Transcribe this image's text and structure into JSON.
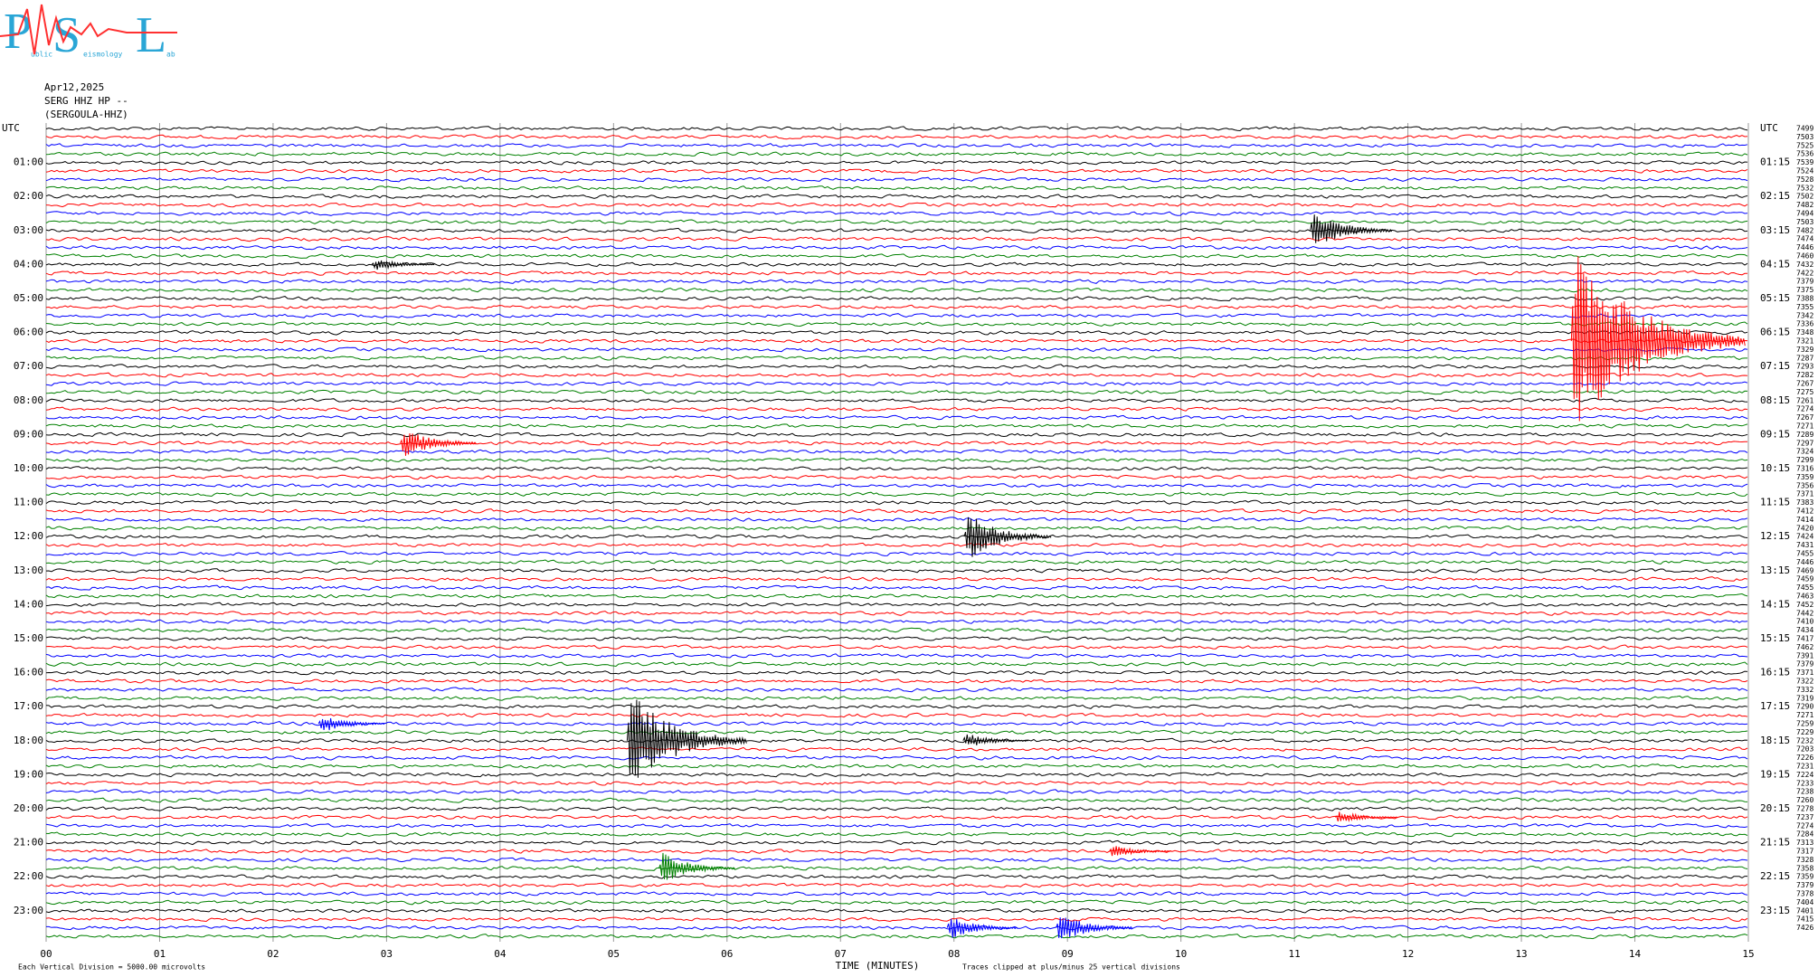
{
  "logo": {
    "letters": [
      "P",
      "S",
      "L"
    ],
    "words": [
      "ublic",
      "eismology",
      "ab"
    ]
  },
  "chart_data": {
    "type": "helicorder",
    "header": [
      "Apr12,2025",
      "SERG HHZ HP --",
      "(SERGOULA-HHZ)"
    ],
    "left_labels": [
      "UTC",
      "01:00",
      "02:00",
      "03:00",
      "04:00",
      "05:00",
      "06:00",
      "07:00",
      "08:00",
      "09:00",
      "10:00",
      "11:00",
      "12:00",
      "13:00",
      "14:00",
      "15:00",
      "16:00",
      "17:00",
      "18:00",
      "19:00",
      "20:00",
      "21:00",
      "22:00",
      "23:00"
    ],
    "right_labels": [
      "UTC",
      "01:15",
      "02:15",
      "03:15",
      "04:15",
      "05:15",
      "06:15",
      "07:15",
      "08:15",
      "09:15",
      "10:15",
      "11:15",
      "12:15",
      "13:15",
      "14:15",
      "15:15",
      "16:15",
      "17:15",
      "18:15",
      "19:15",
      "20:15",
      "21:15",
      "22:15",
      "23:15"
    ],
    "trace_labels": [
      "7499",
      "7503",
      "7525",
      "7536",
      "7539",
      "7524",
      "7528",
      "7532",
      "7502",
      "7482",
      "7494",
      "7503",
      "7482",
      "7474",
      "7446",
      "7460",
      "7432",
      "7422",
      "7379",
      "7375",
      "7388",
      "7355",
      "7342",
      "7336",
      "7348",
      "7321",
      "7329",
      "7287",
      "7293",
      "7282",
      "7267",
      "7275",
      "7261",
      "7274",
      "7267",
      "7271",
      "7289",
      "7297",
      "7324",
      "7299",
      "7316",
      "7359",
      "7356",
      "7371",
      "7383",
      "7412",
      "7414",
      "7420",
      "7424",
      "7431",
      "7455",
      "7446",
      "7469",
      "7459",
      "7455",
      "7463",
      "7452",
      "7442",
      "7410",
      "7434",
      "7417",
      "7462",
      "7391",
      "7379",
      "7371",
      "7322",
      "7332",
      "7319",
      "7290",
      "7271",
      "7259",
      "7229",
      "7232",
      "7203",
      "7226",
      "7231",
      "7224",
      "7233",
      "7238",
      "7260",
      "7278",
      "7237",
      "7274",
      "7284",
      "7313",
      "7317",
      "7328",
      "7358",
      "7359",
      "7379",
      "7378",
      "7404",
      "7401",
      "7415",
      "7426"
    ],
    "colors": [
      "#000000",
      "#ff0000",
      "#0000ff",
      "#008000"
    ],
    "xlim": [
      0,
      15
    ],
    "xticks": [
      {
        "value": 0,
        "label": "00"
      },
      {
        "value": 1,
        "label": "01"
      },
      {
        "value": 2,
        "label": "02"
      },
      {
        "value": 3,
        "label": "03"
      },
      {
        "value": 4,
        "label": "04"
      },
      {
        "value": 5,
        "label": "05"
      },
      {
        "value": 6,
        "label": "06"
      },
      {
        "value": 7,
        "label": "07"
      },
      {
        "value": 8,
        "label": "08"
      },
      {
        "value": 9,
        "label": "09"
      },
      10,
      11,
      12,
      13,
      14,
      15
    ],
    "xlabel": "TIME (MINUTES)",
    "scale_note": "Each Vertical Division = 5000.00 microvolts",
    "clip_note": "Traces clipped at plus/minus 25 vertical divisions",
    "events": [
      {
        "trace": 12,
        "minute": 11.14,
        "amp": 25
      },
      {
        "trace": 16,
        "minute": 2.87,
        "amp": 8
      },
      {
        "trace": 25,
        "minute": 13.44,
        "amp": 110
      },
      {
        "trace": 37,
        "minute": 3.12,
        "amp": 20
      },
      {
        "trace": 48,
        "minute": 8.09,
        "amp": 30
      },
      {
        "trace": 70,
        "minute": 2.4,
        "amp": 12
      },
      {
        "trace": 72,
        "minute": 5.12,
        "amp": 60
      },
      {
        "trace": 72,
        "minute": 8.08,
        "amp": 10
      },
      {
        "trace": 81,
        "minute": 11.36,
        "amp": 8
      },
      {
        "trace": 85,
        "minute": 9.37,
        "amp": 8
      },
      {
        "trace": 87,
        "minute": 5.4,
        "amp": 20
      },
      {
        "trace": 94,
        "minute": 7.94,
        "amp": 15
      },
      {
        "trace": 94,
        "minute": 8.9,
        "amp": 20
      }
    ]
  }
}
